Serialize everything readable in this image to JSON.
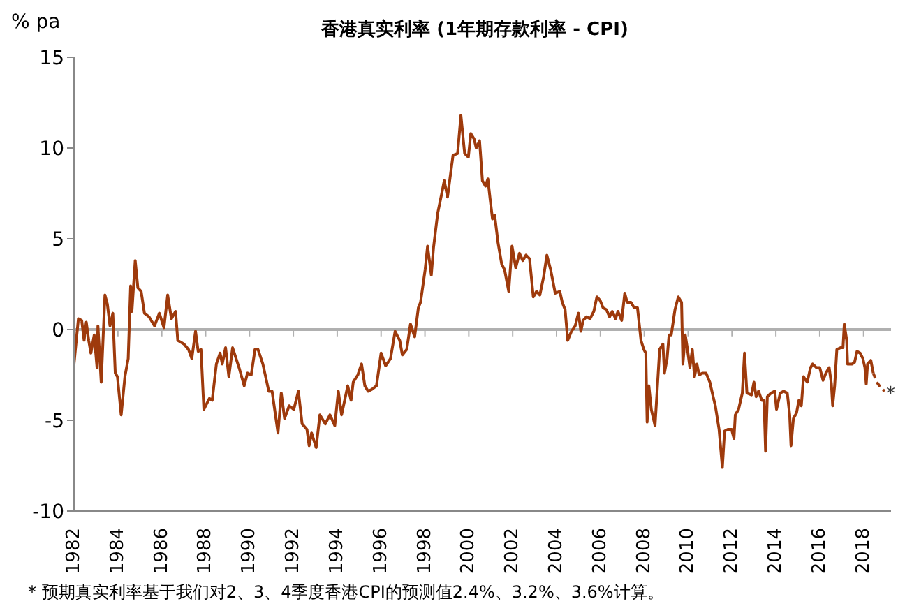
{
  "chart_data": {
    "type": "line",
    "title": "香港真实利率 (1年期存款利率 - CPI)",
    "ylabel": "% pa",
    "annotations": [
      {
        "text": "*",
        "x": 2018.96,
        "y": -3.4
      },
      "* 预期真实利率基于我们对2、3、4季度香港CPI的预测值2.4%、3.2%、3.6%计算。"
    ],
    "xlim": [
      1982,
      2019.25
    ],
    "xticks": [
      1982,
      1984,
      1986,
      1988,
      1990,
      1992,
      1994,
      1996,
      1998,
      2000,
      2002,
      2004,
      2006,
      2008,
      2010,
      2012,
      2014,
      2016,
      2018
    ],
    "ylim": [
      -10,
      15
    ],
    "yticks": [
      -10,
      -5,
      0,
      5,
      10,
      15
    ],
    "ref_lines": [
      {
        "axis": "y",
        "value": 0,
        "color": "#b0b0b0"
      }
    ],
    "series": [
      {
        "color": "#9e3a0c",
        "line_style": "solid",
        "x": [
          1982.0,
          1982.2,
          1982.35,
          1982.46,
          1982.56,
          1982.67,
          1982.77,
          1982.92,
          1983.05,
          1983.09,
          1983.24,
          1983.41,
          1983.52,
          1983.64,
          1983.77,
          1983.88,
          1983.98,
          1984.15,
          1984.32,
          1984.47,
          1984.58,
          1984.64,
          1984.79,
          1984.91,
          1985.06,
          1985.21,
          1985.42,
          1985.67,
          1985.89,
          1986.1,
          1986.27,
          1986.44,
          1986.63,
          1986.73,
          1987.01,
          1987.22,
          1987.37,
          1987.54,
          1987.66,
          1987.79,
          1987.92,
          1988.17,
          1988.3,
          1988.49,
          1988.66,
          1988.76,
          1988.91,
          1989.06,
          1989.23,
          1989.55,
          1989.76,
          1989.91,
          1990.08,
          1990.25,
          1990.39,
          1990.61,
          1990.88,
          1991.03,
          1991.3,
          1991.45,
          1991.6,
          1991.81,
          1992.02,
          1992.23,
          1992.4,
          1992.62,
          1992.72,
          1992.83,
          1993.04,
          1993.21,
          1993.46,
          1993.67,
          1993.89,
          1994.05,
          1994.2,
          1994.48,
          1994.63,
          1994.73,
          1994.94,
          1995.11,
          1995.26,
          1995.41,
          1995.58,
          1995.79,
          1996.0,
          1996.21,
          1996.43,
          1996.64,
          1996.85,
          1996.97,
          1997.17,
          1997.34,
          1997.53,
          1997.7,
          1997.8,
          1998.01,
          1998.12,
          1998.29,
          1998.39,
          1998.58,
          1998.75,
          1998.88,
          1999.03,
          1999.28,
          1999.49,
          1999.64,
          1999.81,
          1999.98,
          2000.09,
          2000.24,
          2000.34,
          2000.49,
          2000.62,
          2000.76,
          2000.87,
          2000.97,
          2001.08,
          2001.18,
          2001.33,
          2001.5,
          2001.63,
          2001.82,
          2001.97,
          2002.14,
          2002.31,
          2002.46,
          2002.61,
          2002.77,
          2002.94,
          2003.09,
          2003.24,
          2003.41,
          2003.56,
          2003.73,
          2003.94,
          2004.15,
          2004.26,
          2004.39,
          2004.51,
          2004.68,
          2004.85,
          2005.0,
          2005.11,
          2005.21,
          2005.36,
          2005.53,
          2005.7,
          2005.84,
          2005.99,
          2006.12,
          2006.27,
          2006.42,
          2006.54,
          2006.69,
          2006.8,
          2006.97,
          2007.11,
          2007.22,
          2007.39,
          2007.54,
          2007.69,
          2007.85,
          2007.98,
          2008.07,
          2008.13,
          2008.21,
          2008.32,
          2008.49,
          2008.7,
          2008.85,
          2008.92,
          2009.04,
          2009.13,
          2009.23,
          2009.4,
          2009.55,
          2009.7,
          2009.76,
          2009.87,
          2009.97,
          2010.08,
          2010.19,
          2010.29,
          2010.4,
          2010.5,
          2010.65,
          2010.82,
          2010.99,
          2011.14,
          2011.24,
          2011.41,
          2011.56,
          2011.66,
          2011.81,
          2011.98,
          2012.09,
          2012.15,
          2012.3,
          2012.47,
          2012.57,
          2012.68,
          2012.89,
          2013.0,
          2013.1,
          2013.21,
          2013.36,
          2013.46,
          2013.53,
          2013.61,
          2013.78,
          2013.95,
          2014.03,
          2014.2,
          2014.35,
          2014.52,
          2014.63,
          2014.69,
          2014.8,
          2014.94,
          2015.05,
          2015.16,
          2015.26,
          2015.43,
          2015.58,
          2015.68,
          2015.85,
          2016.0,
          2016.15,
          2016.28,
          2016.43,
          2016.53,
          2016.59,
          2016.68,
          2016.78,
          2016.95,
          2017.06,
          2017.12,
          2017.23,
          2017.27,
          2017.48,
          2017.59,
          2017.7,
          2017.84,
          2017.97,
          2018.06,
          2018.12,
          2018.18,
          2018.33,
          2018.44
        ],
        "values": [
          -1.9,
          0.6,
          0.5,
          -0.6,
          0.4,
          -0.6,
          -1.3,
          -0.3,
          -2.1,
          0.2,
          -2.9,
          1.9,
          1.4,
          0.2,
          0.9,
          -2.4,
          -2.6,
          -4.7,
          -2.6,
          -1.6,
          2.4,
          1.0,
          3.8,
          2.3,
          2.1,
          0.9,
          0.7,
          0.2,
          0.9,
          0.1,
          1.9,
          0.6,
          1.0,
          -0.6,
          -0.8,
          -1.1,
          -1.6,
          -0.1,
          -1.2,
          -1.1,
          -4.4,
          -3.8,
          -3.9,
          -1.9,
          -1.3,
          -1.9,
          -1.0,
          -2.6,
          -1.0,
          -2.2,
          -3.1,
          -2.4,
          -2.5,
          -1.1,
          -1.1,
          -1.9,
          -3.4,
          -3.4,
          -5.7,
          -3.5,
          -4.9,
          -4.2,
          -4.4,
          -3.4,
          -5.2,
          -5.5,
          -6.4,
          -5.7,
          -6.5,
          -4.7,
          -5.2,
          -4.7,
          -5.3,
          -3.4,
          -4.7,
          -3.1,
          -3.9,
          -2.9,
          -2.5,
          -1.9,
          -3.1,
          -3.4,
          -3.3,
          -3.1,
          -1.3,
          -2.0,
          -1.6,
          -0.1,
          -0.6,
          -1.4,
          -1.1,
          0.3,
          -0.4,
          1.2,
          1.5,
          3.3,
          4.6,
          3.0,
          4.5,
          6.4,
          7.4,
          8.2,
          7.3,
          9.6,
          9.7,
          11.8,
          9.7,
          9.5,
          10.8,
          10.5,
          10.0,
          10.4,
          8.2,
          7.9,
          8.3,
          7.2,
          6.1,
          6.3,
          4.8,
          3.6,
          3.3,
          2.1,
          4.6,
          3.4,
          4.2,
          3.8,
          4.1,
          3.9,
          1.8,
          2.1,
          1.9,
          2.9,
          4.1,
          3.3,
          2.0,
          2.1,
          1.5,
          1.1,
          -0.6,
          -0.1,
          0.2,
          0.9,
          -0.1,
          0.5,
          0.7,
          0.6,
          1.0,
          1.8,
          1.6,
          1.2,
          1.1,
          0.7,
          1.0,
          0.6,
          1.0,
          0.5,
          2.0,
          1.5,
          1.5,
          1.2,
          1.2,
          -0.6,
          -1.1,
          -1.3,
          -5.1,
          -3.1,
          -4.4,
          -5.3,
          -1.1,
          -0.8,
          -2.4,
          -1.6,
          -0.3,
          -0.3,
          1.1,
          1.8,
          1.5,
          -1.9,
          -0.3,
          -1.1,
          -2.1,
          -1.1,
          -2.6,
          -1.9,
          -2.5,
          -2.4,
          -2.4,
          -2.9,
          -3.7,
          -4.2,
          -5.5,
          -7.6,
          -5.6,
          -5.5,
          -5.5,
          -6.0,
          -4.7,
          -4.4,
          -3.5,
          -1.3,
          -3.5,
          -3.6,
          -2.9,
          -3.7,
          -3.4,
          -3.9,
          -3.9,
          -6.7,
          -3.7,
          -3.5,
          -3.4,
          -4.4,
          -3.5,
          -3.4,
          -3.5,
          -4.7,
          -6.4,
          -4.9,
          -4.6,
          -3.9,
          -4.2,
          -2.6,
          -2.9,
          -2.1,
          -1.9,
          -2.1,
          -2.1,
          -2.8,
          -2.4,
          -2.1,
          -3.0,
          -4.2,
          -3.1,
          -1.1,
          -1.0,
          -1.0,
          0.3,
          -0.6,
          -1.9,
          -1.9,
          -1.8,
          -1.2,
          -1.3,
          -1.6,
          -2.1,
          -3.0,
          -1.9,
          -1.7,
          -2.4
        ]
      },
      {
        "color": "#9e3a0c",
        "line_style": "dashed",
        "x": [
          2018.44,
          2018.6,
          2018.78,
          2018.96
        ],
        "values": [
          -2.4,
          -2.9,
          -3.2,
          -3.4
        ]
      }
    ]
  }
}
